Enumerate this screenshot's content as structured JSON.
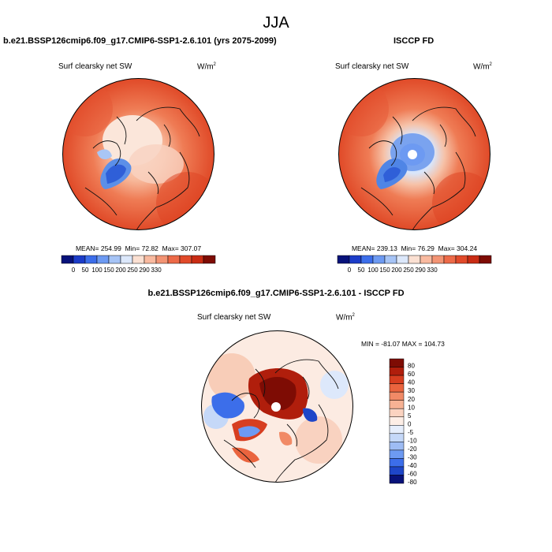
{
  "page": {
    "title": "JJA"
  },
  "panels": [
    {
      "header": "b.e21.BSSP126cmip6.f09_g17.CMIP6-SSP1-2.6.101 (yrs 2075-2099)",
      "variable": "Surf clearsky net SW",
      "units_base": "W/m",
      "units_exp": "2",
      "stats": {
        "mean_label": "MEAN=",
        "mean": "254.99",
        "min_label": "Min=",
        "min": "72.82",
        "max_label": "Max=",
        "max": "307.07"
      }
    },
    {
      "header": "ISCCP FD",
      "variable": "Surf clearsky net SW",
      "units_base": "W/m",
      "units_exp": "2",
      "stats": {
        "mean_label": "MEAN=",
        "mean": "239.13",
        "min_label": "Min=",
        "min": "76.29",
        "max_label": "Max=",
        "max": "304.24"
      }
    },
    {
      "header": "b.e21.BSSP126cmip6.f09_g17.CMIP6-SSP1-2.6.101 - ISCCP FD",
      "variable": "Surf clearsky net SW",
      "units_base": "W/m",
      "units_exp": "2",
      "stats_text": "MIN = -81.07 MAX = 104.73"
    }
  ],
  "colorbar_abs": {
    "colors": [
      "#08127a",
      "#1c3cc8",
      "#3c6eea",
      "#6d9af2",
      "#a6c4f6",
      "#dce8fb",
      "#fbe0d2",
      "#f9baa0",
      "#f39474",
      "#ed6a48",
      "#e14a2a",
      "#c92c14",
      "#7e0c04"
    ],
    "labels": [
      "0",
      "50",
      "100",
      "150",
      "200",
      "250",
      "290",
      "330"
    ]
  },
  "colorbar_diff": {
    "colors": [
      "#08127a",
      "#1e46c8",
      "#3c6eea",
      "#6d9af2",
      "#9ebcf4",
      "#c5d8f8",
      "#e6eefc",
      "#fdeee6",
      "#fbd3c0",
      "#f7b294",
      "#f18a66",
      "#ea643e",
      "#d73e20",
      "#b01e0c",
      "#7e0c04"
    ],
    "labels": [
      "-80",
      "-60",
      "-40",
      "-30",
      "-20",
      "-10",
      "-5",
      "0",
      "5",
      "10",
      "20",
      "30",
      "40",
      "60",
      "80"
    ]
  }
}
